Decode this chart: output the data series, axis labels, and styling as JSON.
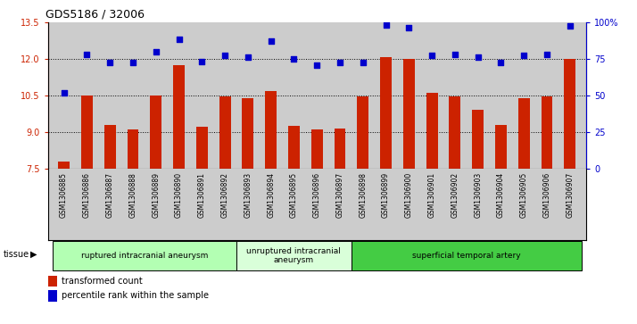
{
  "title": "GDS5186 / 32006",
  "samples": [
    "GSM1306885",
    "GSM1306886",
    "GSM1306887",
    "GSM1306888",
    "GSM1306889",
    "GSM1306890",
    "GSM1306891",
    "GSM1306892",
    "GSM1306893",
    "GSM1306894",
    "GSM1306895",
    "GSM1306896",
    "GSM1306897",
    "GSM1306898",
    "GSM1306899",
    "GSM1306900",
    "GSM1306901",
    "GSM1306902",
    "GSM1306903",
    "GSM1306904",
    "GSM1306905",
    "GSM1306906",
    "GSM1306907"
  ],
  "bar_values": [
    7.8,
    10.5,
    9.3,
    9.1,
    10.5,
    11.75,
    9.2,
    10.45,
    10.4,
    10.7,
    9.25,
    9.1,
    9.15,
    10.45,
    12.1,
    12.0,
    10.6,
    10.45,
    9.9,
    9.3,
    10.4,
    10.45,
    12.0
  ],
  "dot_values": [
    10.6,
    12.2,
    11.85,
    11.85,
    12.3,
    12.8,
    11.9,
    12.15,
    12.1,
    12.75,
    12.0,
    11.75,
    11.85,
    11.85,
    13.4,
    13.3,
    12.15,
    12.2,
    12.1,
    11.85,
    12.15,
    12.2,
    13.35
  ],
  "bar_color": "#cc2200",
  "dot_color": "#0000cc",
  "ylim_left": [
    7.5,
    13.5
  ],
  "yticks_left": [
    7.5,
    9.0,
    10.5,
    12.0,
    13.5
  ],
  "ylim_right": [
    0,
    100
  ],
  "yticks_right": [
    0,
    25,
    50,
    75,
    100
  ],
  "ytick_labels_right": [
    "0",
    "25",
    "50",
    "75",
    "100%"
  ],
  "groups": [
    {
      "label": "ruptured intracranial aneurysm",
      "start": 0,
      "end": 8,
      "color": "#b3ffb3"
    },
    {
      "label": "unruptured intracranial\naneurysm",
      "start": 8,
      "end": 13,
      "color": "#d9ffd9"
    },
    {
      "label": "superficial temporal artery",
      "start": 13,
      "end": 23,
      "color": "#44cc44"
    }
  ],
  "tissue_label": "tissue",
  "legend_bar_label": "transformed count",
  "legend_dot_label": "percentile rank within the sample",
  "plot_bg_color": "#cccccc",
  "fig_bg_color": "#ffffff",
  "bar_bottom": 7.5
}
